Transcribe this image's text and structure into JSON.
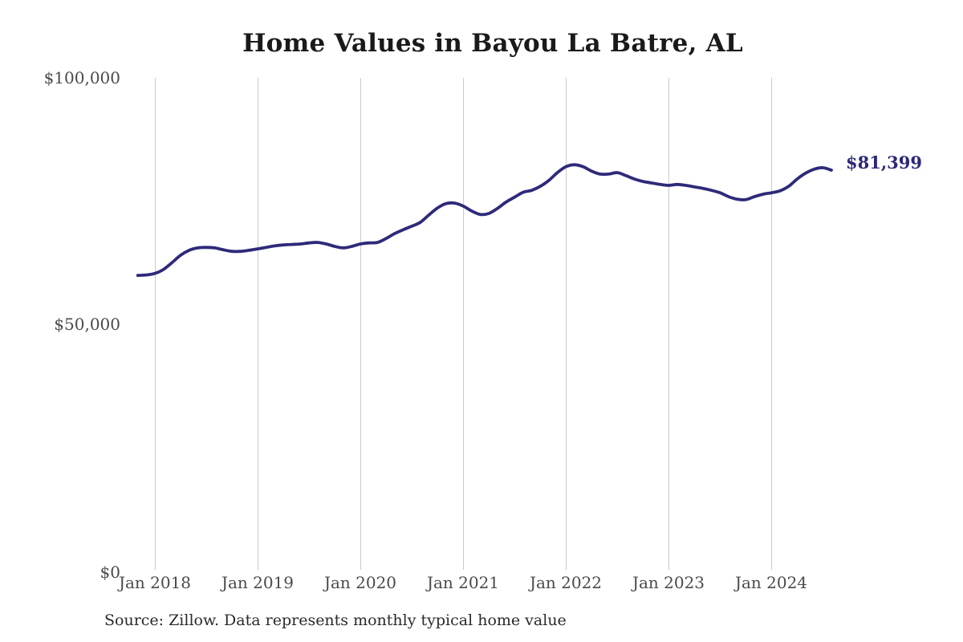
{
  "title": "Home Values in Bayou La Batre, AL",
  "source_note": "Source: Zillow. Data represents monthly typical home value",
  "end_label": "$81,399",
  "colors": {
    "line": "#2e2a7a",
    "end_label": "#2b2878",
    "grid": "#cbcbcb",
    "title": "#1a1a1a",
    "tick_label": "#4a4a4a"
  },
  "chart_data": {
    "type": "line",
    "title": "Home Values in Bayou La Batre, AL",
    "xlabel": "",
    "ylabel": "",
    "unit": "USD",
    "ylim": [
      0,
      100000
    ],
    "grid": "vertical-only",
    "legend": "none",
    "y_ticks": [
      {
        "label": "$100,000",
        "value": 100000
      },
      {
        "label": "$50,000",
        "value": 50000
      },
      {
        "label": "$0",
        "value": 0
      }
    ],
    "x_ticks": [
      "Jan 2018",
      "Jan 2019",
      "Jan 2020",
      "Jan 2021",
      "Jan 2022",
      "Jan 2023",
      "Jan 2024"
    ],
    "end_value": 81399,
    "series": [
      {
        "name": "Monthly typical home value",
        "start_month": "2017-11",
        "frequency": "monthly",
        "values": [
          60000,
          60100,
          60400,
          61200,
          62600,
          64100,
          65100,
          65600,
          65700,
          65600,
          65200,
          64900,
          64900,
          65100,
          65400,
          65700,
          66000,
          66200,
          66300,
          66400,
          66600,
          66700,
          66400,
          65900,
          65600,
          65900,
          66400,
          66600,
          66700,
          67500,
          68500,
          69300,
          70000,
          70800,
          72300,
          73700,
          74600,
          74700,
          74100,
          73100,
          72400,
          72600,
          73600,
          74900,
          75900,
          76900,
          77300,
          78100,
          79300,
          80900,
          82100,
          82500,
          82100,
          81200,
          80600,
          80600,
          80900,
          80300,
          79600,
          79100,
          78800,
          78500,
          78300,
          78500,
          78300,
          78000,
          77700,
          77300,
          76800,
          76000,
          75500,
          75400,
          76000,
          76500,
          76800,
          77200,
          78100,
          79600,
          80800,
          81600,
          81900,
          81399
        ]
      }
    ]
  }
}
